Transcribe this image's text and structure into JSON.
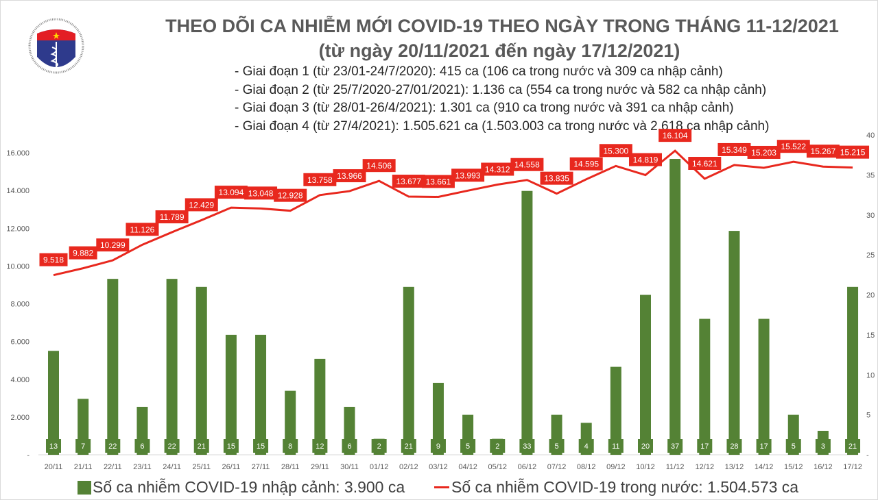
{
  "header": {
    "title": "THEO DÕI CA NHIỄM MỚI COVID-19 THEO NGÀY TRONG THÁNG 11-12/2021",
    "subtitle": "(từ ngày 20/11/2021 đến ngày 17/12/2021)",
    "stages": [
      "- Giai đoạn 1 (từ 23/01-24/7/2020): 415 ca (106 ca trong nước và 309 ca nhập cảnh)",
      "- Giai đoạn 2 (từ 25/7/2020-27/01/2021): 1.136 ca (554 ca trong nước và 582 ca nhập cảnh)",
      "- Giai đoạn 3 (từ 28/01-26/4/2021): 1.301 ca (910 ca trong nước và 391 ca nhập cảnh)",
      "- Giai đoạn 4 (từ 27/4/2021): 1.505.621 ca (1.503.003 ca trong nước và 2.618 ca nhập cảnh)"
    ],
    "logo": {
      "top_text": "BỘ Y TẾ",
      "bottom_text": "MINISTRY OF HEALTH"
    }
  },
  "chart_data": {
    "type": "bar+line",
    "categories": [
      "20/11",
      "21/11",
      "22/11",
      "23/11",
      "24/11",
      "25/11",
      "26/11",
      "27/11",
      "28/11",
      "29/11",
      "30/11",
      "01/12",
      "02/12",
      "03/12",
      "04/12",
      "05/12",
      "06/12",
      "07/12",
      "08/12",
      "09/12",
      "10/12",
      "11/12",
      "12/12",
      "13/12",
      "14/12",
      "15/12",
      "16/12",
      "17/12"
    ],
    "series": [
      {
        "name": "Số ca nhiễm COVID-19 nhập cảnh: 3.900 ca",
        "type": "bar",
        "axis": "right",
        "color": "#548235",
        "values": [
          13,
          7,
          22,
          6,
          22,
          21,
          15,
          15,
          8,
          12,
          6,
          2,
          21,
          9,
          5,
          2,
          33,
          5,
          4,
          11,
          20,
          37,
          17,
          28,
          17,
          5,
          3,
          21
        ]
      },
      {
        "name": "Số ca nhiễm COVID-19 trong nước: 1.504.573 ca",
        "type": "line",
        "axis": "left",
        "color": "#e8281e",
        "values": [
          9518,
          9882,
          10299,
          11126,
          11789,
          12429,
          13094,
          13048,
          12928,
          13758,
          13966,
          14506,
          13677,
          13661,
          13993,
          14312,
          14558,
          13835,
          14595,
          15300,
          14819,
          16104,
          14621,
          15349,
          15203,
          15522,
          15267,
          15215
        ],
        "labels": [
          "9.518",
          "9.882",
          "10.299",
          "11.126",
          "11.789",
          "12.429",
          "13.094",
          "13.048",
          "12.928",
          "13.758",
          "13.966",
          "14.506",
          "13.677",
          "13.661",
          "13.993",
          "14.312",
          "14.558",
          "13.835",
          "14.595",
          "15.300",
          "14.819",
          "16.104",
          "14.621",
          "15.349",
          "15.203",
          "15.522",
          "15.267",
          "15.215"
        ]
      }
    ],
    "left_axis": {
      "range": [
        0,
        16000
      ],
      "ticks": [
        "-",
        "2.000",
        "4.000",
        "6.000",
        "8.000",
        "10.000",
        "12.000",
        "14.000",
        "16.000"
      ]
    },
    "right_axis": {
      "range": [
        0,
        40
      ],
      "ticks": [
        "-",
        "5",
        "10",
        "15",
        "20",
        "25",
        "30",
        "35",
        "40"
      ]
    },
    "grid": false,
    "legend": "bottom"
  }
}
